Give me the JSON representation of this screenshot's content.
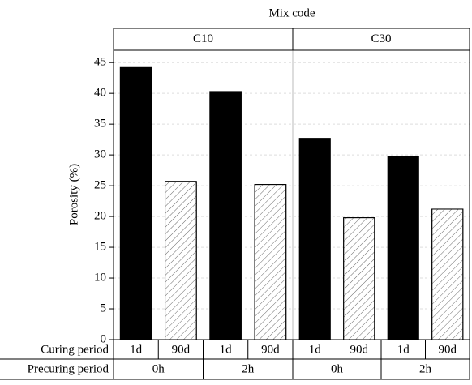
{
  "chart_data": {
    "type": "bar",
    "title": "Mix code",
    "groups": [
      "C10",
      "C30"
    ],
    "ylabel": "Porosity (%)",
    "curing_label": "Curing period",
    "precuring_label": "Precuring period",
    "categories": [
      "1d",
      "90d",
      "1d",
      "90d",
      "1d",
      "90d",
      "1d",
      "90d"
    ],
    "precuring": [
      "0h",
      "2h",
      "0h",
      "2h"
    ],
    "values": [
      44.2,
      25.7,
      40.3,
      25.2,
      32.7,
      19.8,
      29.8,
      21.2
    ],
    "colors": [
      "#000000",
      "#ffffff",
      "#000000",
      "#ffffff",
      "#000000",
      "#ffffff",
      "#000000",
      "#ffffff"
    ],
    "hatch": [
      false,
      true,
      false,
      true,
      false,
      true,
      false,
      true
    ],
    "ylim": [
      0,
      47
    ],
    "yticks": [
      0,
      5,
      10,
      15,
      20,
      25,
      30,
      35,
      40,
      45
    ],
    "grid": true
  }
}
